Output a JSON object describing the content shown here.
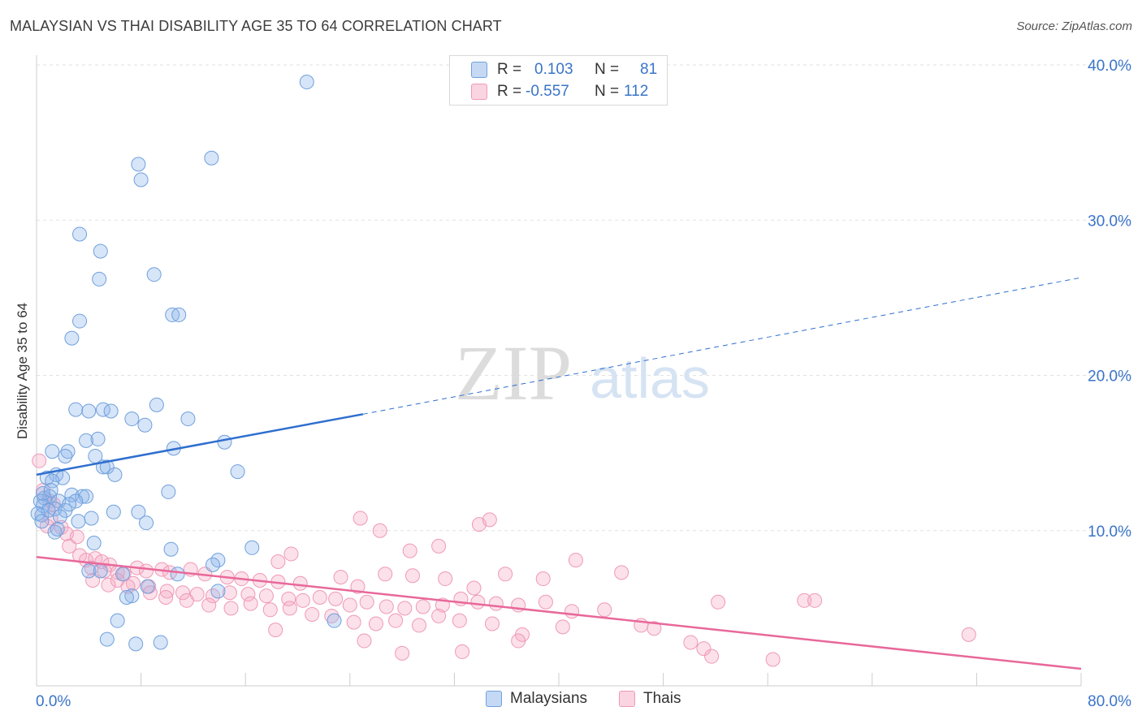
{
  "header": {
    "title": "MALAYSIAN VS THAI DISABILITY AGE 35 TO 64 CORRELATION CHART",
    "source": "Source: ZipAtlas.com"
  },
  "watermark": {
    "zip": "ZIP",
    "atlas": "atlas"
  },
  "stats": {
    "rows": [
      {
        "r_label": "R =",
        "r_value": "0.103",
        "n_label": "N =",
        "n_value": "81",
        "color": "#7fb0e6"
      },
      {
        "r_label": "R =",
        "r_value": "-0.557",
        "n_label": "N =",
        "n_value": "112",
        "color": "#f29bb8"
      }
    ]
  },
  "legend": {
    "items": [
      {
        "label": "Malaysians",
        "color": "#7fb0e6"
      },
      {
        "label": "Thais",
        "color": "#f29bb8"
      }
    ]
  },
  "colors": {
    "malaysians_fill": "rgba(140,180,235,0.35)",
    "malaysians_stroke": "#6fa0dd",
    "malaysians_line": "#2f6fcf",
    "thais_fill": "rgba(245,170,195,0.35)",
    "thais_stroke": "#ef99b5",
    "thais_line": "#e8689a",
    "axis_label": "#3a74c7",
    "grid": "#e2e2e2"
  },
  "chart_data": {
    "type": "scatter",
    "title": "MALAYSIAN VS THAI DISABILITY AGE 35 TO 64 CORRELATION CHART",
    "xlabel": "",
    "ylabel": "Disability Age 35 to 64",
    "xlim": [
      0,
      80
    ],
    "ylim": [
      0,
      40
    ],
    "x_tick_labels": [
      "0.0%",
      "80.0%"
    ],
    "y_ticks": [
      10,
      20,
      30,
      40
    ],
    "y_tick_labels": [
      "10.0%",
      "20.0%",
      "30.0%",
      "40.0%"
    ],
    "grid": true,
    "legend_position": "bottom-center",
    "series": [
      {
        "name": "Malaysians",
        "r": 0.103,
        "n": 81,
        "trend": {
          "x0": 0,
          "y0": 13.6,
          "x1": 25,
          "y1": 17.5,
          "extend_to_x": 80,
          "extend_to_y": 26.3
        },
        "points": [
          [
            20.7,
            38.9
          ],
          [
            13.4,
            34.0
          ],
          [
            7.8,
            33.6
          ],
          [
            8.0,
            32.6
          ],
          [
            3.3,
            29.1
          ],
          [
            4.9,
            28.0
          ],
          [
            9.0,
            26.5
          ],
          [
            4.8,
            26.2
          ],
          [
            10.4,
            23.9
          ],
          [
            10.9,
            23.9
          ],
          [
            3.3,
            23.5
          ],
          [
            2.7,
            22.4
          ],
          [
            3.0,
            17.8
          ],
          [
            5.1,
            17.8
          ],
          [
            4.0,
            17.7
          ],
          [
            5.7,
            17.7
          ],
          [
            9.2,
            18.1
          ],
          [
            11.6,
            17.2
          ],
          [
            7.3,
            17.2
          ],
          [
            8.3,
            16.8
          ],
          [
            3.8,
            15.8
          ],
          [
            4.7,
            15.9
          ],
          [
            14.4,
            15.7
          ],
          [
            10.5,
            15.3
          ],
          [
            1.2,
            15.1
          ],
          [
            2.4,
            15.1
          ],
          [
            2.2,
            14.8
          ],
          [
            4.5,
            14.8
          ],
          [
            5.1,
            14.1
          ],
          [
            5.4,
            14.1
          ],
          [
            15.4,
            13.8
          ],
          [
            1.5,
            13.6
          ],
          [
            0.8,
            13.4
          ],
          [
            2.0,
            13.4
          ],
          [
            6.0,
            13.6
          ],
          [
            1.2,
            13.2
          ],
          [
            10.1,
            12.5
          ],
          [
            1.0,
            12.2
          ],
          [
            0.6,
            12.1
          ],
          [
            0.3,
            11.9
          ],
          [
            1.7,
            11.9
          ],
          [
            2.7,
            12.3
          ],
          [
            3.5,
            12.2
          ],
          [
            3.8,
            12.2
          ],
          [
            3.0,
            11.9
          ],
          [
            0.5,
            11.6
          ],
          [
            1.4,
            11.4
          ],
          [
            2.2,
            11.3
          ],
          [
            1.8,
            10.9
          ],
          [
            2.5,
            11.7
          ],
          [
            5.9,
            11.2
          ],
          [
            7.8,
            11.2
          ],
          [
            0.4,
            11.0
          ],
          [
            0.9,
            11.3
          ],
          [
            0.1,
            11.1
          ],
          [
            0.4,
            10.6
          ],
          [
            3.2,
            10.6
          ],
          [
            4.2,
            10.8
          ],
          [
            8.4,
            10.5
          ],
          [
            1.4,
            9.9
          ],
          [
            4.4,
            9.2
          ],
          [
            16.5,
            8.9
          ],
          [
            10.3,
            8.8
          ],
          [
            13.9,
            8.1
          ],
          [
            13.5,
            7.8
          ],
          [
            4.0,
            7.4
          ],
          [
            6.6,
            7.2
          ],
          [
            10.8,
            7.2
          ],
          [
            8.5,
            6.4
          ],
          [
            13.9,
            6.1
          ],
          [
            7.3,
            5.8
          ],
          [
            6.9,
            5.7
          ],
          [
            1.6,
            10.1
          ],
          [
            4.9,
            7.4
          ],
          [
            22.8,
            4.2
          ],
          [
            6.2,
            4.2
          ],
          [
            5.4,
            3.0
          ],
          [
            9.5,
            2.8
          ],
          [
            7.6,
            2.7
          ],
          [
            0.5,
            12.4
          ],
          [
            1.1,
            12.6
          ]
        ]
      },
      {
        "name": "Thais",
        "r": -0.557,
        "n": 112,
        "trend": {
          "x0": 0,
          "y0": 8.3,
          "x1": 80,
          "y1": 1.1
        },
        "points": [
          [
            0.2,
            14.5
          ],
          [
            0.5,
            12.6
          ],
          [
            1.0,
            11.9
          ],
          [
            1.3,
            11.7
          ],
          [
            1.1,
            10.8
          ],
          [
            0.8,
            10.3
          ],
          [
            1.9,
            10.2
          ],
          [
            2.3,
            9.8
          ],
          [
            3.1,
            9.6
          ],
          [
            2.5,
            9.0
          ],
          [
            3.3,
            8.4
          ],
          [
            3.8,
            8.1
          ],
          [
            4.5,
            8.2
          ],
          [
            5.0,
            8.0
          ],
          [
            5.6,
            7.8
          ],
          [
            4.2,
            7.6
          ],
          [
            5.2,
            7.4
          ],
          [
            6.2,
            7.3
          ],
          [
            6.7,
            7.2
          ],
          [
            7.7,
            7.6
          ],
          [
            8.4,
            7.4
          ],
          [
            9.6,
            7.5
          ],
          [
            10.2,
            7.3
          ],
          [
            11.8,
            7.5
          ],
          [
            12.9,
            7.2
          ],
          [
            14.6,
            7.0
          ],
          [
            15.7,
            6.9
          ],
          [
            17.1,
            6.8
          ],
          [
            18.5,
            6.7
          ],
          [
            20.2,
            6.6
          ],
          [
            6.2,
            6.8
          ],
          [
            7.4,
            6.6
          ],
          [
            8.6,
            6.4
          ],
          [
            10.0,
            6.1
          ],
          [
            11.2,
            6.0
          ],
          [
            12.3,
            5.9
          ],
          [
            13.5,
            5.8
          ],
          [
            14.8,
            6.0
          ],
          [
            16.2,
            5.9
          ],
          [
            17.6,
            5.8
          ],
          [
            19.3,
            5.6
          ],
          [
            20.4,
            5.5
          ],
          [
            21.7,
            5.7
          ],
          [
            22.9,
            5.6
          ],
          [
            24.0,
            5.2
          ],
          [
            25.3,
            5.4
          ],
          [
            26.8,
            5.1
          ],
          [
            28.2,
            5.0
          ],
          [
            29.6,
            5.1
          ],
          [
            31.1,
            5.2
          ],
          [
            32.5,
            5.6
          ],
          [
            33.8,
            5.4
          ],
          [
            35.2,
            5.3
          ],
          [
            36.9,
            5.2
          ],
          [
            39.0,
            5.4
          ],
          [
            41.0,
            4.8
          ],
          [
            43.5,
            4.9
          ],
          [
            47.3,
            3.7
          ],
          [
            18.5,
            8.0
          ],
          [
            19.5,
            8.5
          ],
          [
            23.3,
            7.0
          ],
          [
            24.6,
            6.4
          ],
          [
            26.7,
            7.2
          ],
          [
            28.8,
            7.1
          ],
          [
            31.3,
            6.9
          ],
          [
            33.5,
            6.3
          ],
          [
            35.9,
            7.2
          ],
          [
            38.8,
            6.9
          ],
          [
            41.3,
            8.1
          ],
          [
            44.8,
            7.3
          ],
          [
            24.8,
            10.8
          ],
          [
            26.3,
            10.0
          ],
          [
            28.6,
            8.7
          ],
          [
            30.8,
            9.0
          ],
          [
            33.9,
            10.4
          ],
          [
            34.7,
            10.7
          ],
          [
            4.3,
            6.8
          ],
          [
            5.5,
            6.5
          ],
          [
            7.0,
            6.4
          ],
          [
            8.7,
            6.0
          ],
          [
            9.9,
            5.7
          ],
          [
            11.5,
            5.5
          ],
          [
            13.2,
            5.2
          ],
          [
            14.9,
            5.0
          ],
          [
            16.4,
            5.3
          ],
          [
            17.9,
            4.9
          ],
          [
            19.4,
            5.0
          ],
          [
            21.1,
            4.6
          ],
          [
            22.6,
            4.5
          ],
          [
            24.3,
            4.1
          ],
          [
            26.0,
            4.0
          ],
          [
            27.5,
            4.2
          ],
          [
            29.3,
            3.9
          ],
          [
            30.8,
            4.5
          ],
          [
            32.4,
            4.2
          ],
          [
            34.9,
            4.0
          ],
          [
            37.2,
            3.3
          ],
          [
            40.3,
            3.8
          ],
          [
            46.3,
            3.9
          ],
          [
            50.1,
            2.8
          ],
          [
            51.1,
            2.4
          ],
          [
            51.7,
            1.9
          ],
          [
            56.4,
            1.7
          ],
          [
            71.4,
            3.3
          ],
          [
            52.2,
            5.4
          ],
          [
            58.8,
            5.5
          ],
          [
            59.6,
            5.5
          ],
          [
            18.3,
            3.6
          ],
          [
            25.1,
            2.9
          ],
          [
            28.0,
            2.1
          ],
          [
            32.6,
            2.2
          ],
          [
            36.9,
            2.9
          ]
        ]
      }
    ]
  }
}
